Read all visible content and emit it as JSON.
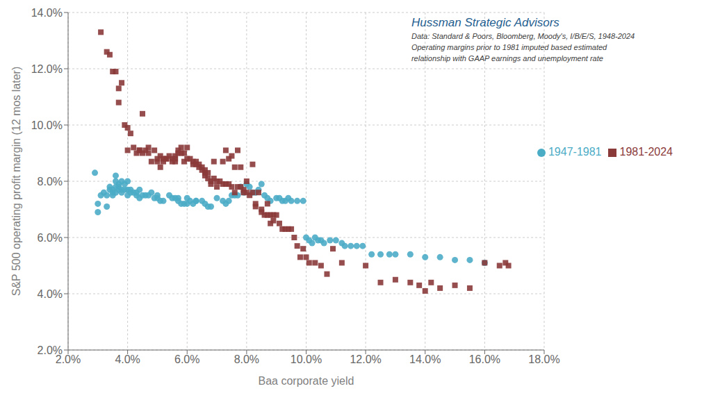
{
  "chart_data": {
    "type": "scatter",
    "title": "Hussman Strategic Advisors",
    "subtitle": [
      "Data: Standard & Poors, Bloomberg, Moody's, I/B/E/S, 1948-2024",
      "Operating margins prior to 1981 imputed based estimated",
      "relationship with GAAP earnings and unemployment rate"
    ],
    "xlabel": "Baa corporate yield",
    "ylabel": "S&P 500 operating profit margin  (12 mos later)",
    "xlim": [
      0.02,
      0.18
    ],
    "ylim": [
      0.02,
      0.14
    ],
    "xticks": [
      {
        "value": 0.02,
        "label": "2.0%"
      },
      {
        "value": 0.04,
        "label": "4.0%"
      },
      {
        "value": 0.06,
        "label": "6.0%"
      },
      {
        "value": 0.08,
        "label": "8.0%"
      },
      {
        "value": 0.1,
        "label": "10.0%"
      },
      {
        "value": 0.12,
        "label": "12.0%"
      },
      {
        "value": 0.14,
        "label": "14.0%"
      },
      {
        "value": 0.16,
        "label": "16.0%"
      },
      {
        "value": 0.18,
        "label": "18.0%"
      }
    ],
    "yticks": [
      {
        "value": 0.02,
        "label": "2.0%"
      },
      {
        "value": 0.04,
        "label": "4.0%"
      },
      {
        "value": 0.06,
        "label": "6.0%"
      },
      {
        "value": 0.08,
        "label": "8.0%"
      },
      {
        "value": 0.1,
        "label": "10.0%"
      },
      {
        "value": 0.12,
        "label": "12.0%"
      },
      {
        "value": 0.14,
        "label": "14.0%"
      }
    ],
    "grid": true,
    "legend": "upper right",
    "series": [
      {
        "name": "1947-1981",
        "color": "#4bacc6",
        "marker": "circle",
        "x": [
          0.029,
          0.03,
          0.03,
          0.031,
          0.032,
          0.033,
          0.033,
          0.034,
          0.034,
          0.035,
          0.035,
          0.035,
          0.036,
          0.036,
          0.036,
          0.036,
          0.037,
          0.037,
          0.037,
          0.038,
          0.038,
          0.038,
          0.039,
          0.039,
          0.04,
          0.04,
          0.04,
          0.041,
          0.041,
          0.042,
          0.043,
          0.043,
          0.044,
          0.044,
          0.045,
          0.046,
          0.047,
          0.048,
          0.049,
          0.05,
          0.05,
          0.051,
          0.052,
          0.054,
          0.055,
          0.056,
          0.057,
          0.057,
          0.058,
          0.059,
          0.06,
          0.06,
          0.061,
          0.062,
          0.063,
          0.063,
          0.065,
          0.066,
          0.067,
          0.068,
          0.07,
          0.072,
          0.073,
          0.074,
          0.075,
          0.076,
          0.077,
          0.078,
          0.079,
          0.08,
          0.081,
          0.082,
          0.083,
          0.084,
          0.085,
          0.086,
          0.087,
          0.088,
          0.09,
          0.091,
          0.092,
          0.093,
          0.094,
          0.095,
          0.097,
          0.099,
          0.1,
          0.101,
          0.102,
          0.103,
          0.104,
          0.105,
          0.106,
          0.108,
          0.11,
          0.112,
          0.113,
          0.115,
          0.117,
          0.119,
          0.122,
          0.125,
          0.128,
          0.13,
          0.135,
          0.14,
          0.145,
          0.15,
          0.155,
          0.16
        ],
        "values": [
          0.083,
          0.069,
          0.072,
          0.075,
          0.076,
          0.071,
          0.075,
          0.077,
          0.078,
          0.077,
          0.076,
          0.075,
          0.076,
          0.078,
          0.08,
          0.082,
          0.079,
          0.078,
          0.077,
          0.077,
          0.08,
          0.076,
          0.077,
          0.079,
          0.077,
          0.075,
          0.08,
          0.076,
          0.077,
          0.076,
          0.075,
          0.076,
          0.074,
          0.077,
          0.075,
          0.075,
          0.075,
          0.076,
          0.074,
          0.074,
          0.075,
          0.073,
          0.073,
          0.075,
          0.074,
          0.074,
          0.073,
          0.074,
          0.072,
          0.072,
          0.072,
          0.074,
          0.073,
          0.072,
          0.073,
          0.073,
          0.073,
          0.072,
          0.071,
          0.071,
          0.074,
          0.073,
          0.072,
          0.073,
          0.075,
          0.075,
          0.075,
          0.078,
          0.076,
          0.079,
          0.078,
          0.076,
          0.076,
          0.077,
          0.079,
          0.075,
          0.074,
          0.073,
          0.074,
          0.074,
          0.073,
          0.073,
          0.074,
          0.073,
          0.073,
          0.073,
          0.06,
          0.059,
          0.058,
          0.06,
          0.059,
          0.059,
          0.058,
          0.059,
          0.059,
          0.058,
          0.057,
          0.057,
          0.057,
          0.057,
          0.054,
          0.054,
          0.054,
          0.054,
          0.054,
          0.053,
          0.053,
          0.052,
          0.052,
          0.051
        ]
      },
      {
        "name": "1981-2024",
        "color": "#8b3a3a",
        "marker": "square",
        "x": [
          0.031,
          0.033,
          0.034,
          0.035,
          0.036,
          0.037,
          0.037,
          0.038,
          0.039,
          0.04,
          0.04,
          0.041,
          0.042,
          0.043,
          0.044,
          0.044,
          0.045,
          0.045,
          0.046,
          0.047,
          0.047,
          0.048,
          0.049,
          0.05,
          0.05,
          0.051,
          0.051,
          0.052,
          0.052,
          0.053,
          0.053,
          0.054,
          0.055,
          0.055,
          0.056,
          0.056,
          0.056,
          0.057,
          0.057,
          0.058,
          0.058,
          0.059,
          0.059,
          0.06,
          0.06,
          0.061,
          0.062,
          0.062,
          0.063,
          0.063,
          0.064,
          0.064,
          0.065,
          0.065,
          0.066,
          0.066,
          0.066,
          0.067,
          0.067,
          0.068,
          0.068,
          0.069,
          0.069,
          0.07,
          0.07,
          0.071,
          0.072,
          0.072,
          0.073,
          0.073,
          0.074,
          0.074,
          0.075,
          0.075,
          0.076,
          0.076,
          0.077,
          0.077,
          0.078,
          0.078,
          0.079,
          0.079,
          0.08,
          0.08,
          0.081,
          0.082,
          0.082,
          0.083,
          0.083,
          0.084,
          0.085,
          0.085,
          0.086,
          0.087,
          0.087,
          0.088,
          0.088,
          0.089,
          0.089,
          0.09,
          0.091,
          0.092,
          0.093,
          0.094,
          0.095,
          0.096,
          0.097,
          0.098,
          0.099,
          0.1,
          0.101,
          0.103,
          0.105,
          0.107,
          0.109,
          0.112,
          0.12,
          0.125,
          0.13,
          0.135,
          0.138,
          0.14,
          0.142,
          0.145,
          0.15,
          0.155,
          0.16,
          0.165,
          0.167,
          0.168
        ],
        "values": [
          0.133,
          0.126,
          0.125,
          0.119,
          0.119,
          0.108,
          0.113,
          0.115,
          0.1,
          0.099,
          0.091,
          0.097,
          0.092,
          0.09,
          0.091,
          0.091,
          0.09,
          0.104,
          0.091,
          0.092,
          0.09,
          0.087,
          0.091,
          0.087,
          0.088,
          0.089,
          0.085,
          0.088,
          0.087,
          0.088,
          0.088,
          0.089,
          0.088,
          0.087,
          0.088,
          0.087,
          0.089,
          0.09,
          0.091,
          0.092,
          0.09,
          0.09,
          0.087,
          0.092,
          0.088,
          0.088,
          0.087,
          0.086,
          0.086,
          0.087,
          0.086,
          0.085,
          0.085,
          0.084,
          0.083,
          0.082,
          0.084,
          0.083,
          0.081,
          0.08,
          0.079,
          0.081,
          0.087,
          0.078,
          0.08,
          0.08,
          0.079,
          0.087,
          0.079,
          0.091,
          0.079,
          0.088,
          0.078,
          0.089,
          0.076,
          0.085,
          0.078,
          0.091,
          0.078,
          0.085,
          0.077,
          0.076,
          0.076,
          0.08,
          0.075,
          0.076,
          0.086,
          0.072,
          0.071,
          0.076,
          0.07,
          0.069,
          0.068,
          0.068,
          0.072,
          0.065,
          0.068,
          0.068,
          0.066,
          0.068,
          0.065,
          0.063,
          0.063,
          0.063,
          0.063,
          0.06,
          0.057,
          0.053,
          0.056,
          0.053,
          0.051,
          0.051,
          0.05,
          0.047,
          0.056,
          0.051,
          0.05,
          0.044,
          0.045,
          0.044,
          0.043,
          0.041,
          0.044,
          0.042,
          0.043,
          0.042,
          0.051,
          0.05,
          0.051,
          0.05
        ]
      }
    ]
  }
}
